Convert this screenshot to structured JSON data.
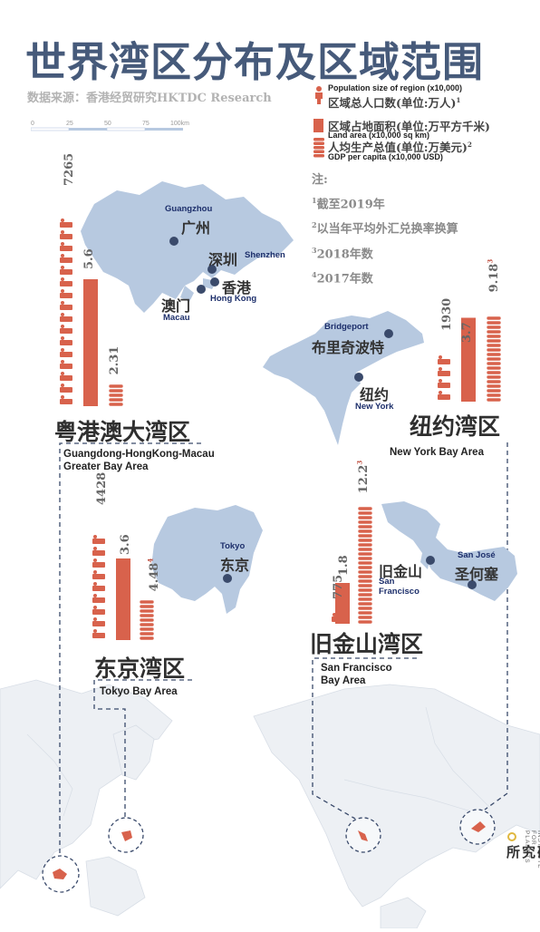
{
  "title": "世界湾区分布及区域范围",
  "source": "数据来源：香港经贸研究HKTDC Research",
  "scale": {
    "ticks": [
      "0",
      "25",
      "50",
      "75",
      "100km"
    ]
  },
  "legend": {
    "population": {
      "cn": "区域总人口数(单位:万人)",
      "sup": "1",
      "en": "Population size of region (x10,000)"
    },
    "area": {
      "cn": "区域占地面积(单位:万平方千米)",
      "en": "Land area (x10,000 sq km)"
    },
    "gdp": {
      "cn": "人均生产总值(单位:万美元)",
      "sup": "2",
      "en": "GDP per capita (x10,000 USD)"
    }
  },
  "notes": {
    "heading": "注:",
    "items": [
      {
        "sup": "1",
        "text": "截至2019年"
      },
      {
        "sup": "2",
        "text": "以当年平均外汇兑换率换算"
      },
      {
        "sup": "3",
        "text": "2018年数"
      },
      {
        "sup": "4",
        "text": "2017年数"
      }
    ]
  },
  "regions": {
    "gba": {
      "name_cn": "粤港澳大湾区",
      "name_en_1": "Guangdong-HongKong-Macau",
      "name_en_2": "Greater Bay Area",
      "population": "7265",
      "area": "5.6",
      "gdp": "2.31",
      "gdp_sup": "",
      "values": {
        "population": 7265,
        "area": 5.6,
        "gdp": 2.31
      },
      "cities": [
        {
          "cn": "广州",
          "en": "Guangzhou"
        },
        {
          "cn": "深圳",
          "en": "Shenzhen"
        },
        {
          "cn": "香港",
          "en": "Hong Kong"
        },
        {
          "cn": "澳门",
          "en": "Macau"
        }
      ]
    },
    "ny": {
      "name_cn": "纽约湾区",
      "name_en": "New York Bay Area",
      "population": "1930",
      "area": "3.7",
      "gdp": "9.18",
      "gdp_sup": "3",
      "values": {
        "population": 1930,
        "area": 3.7,
        "gdp": 9.18
      },
      "cities": [
        {
          "cn": "布里奇波特",
          "en": "Bridgeport"
        },
        {
          "cn": "纽约",
          "en": "New York"
        }
      ]
    },
    "tokyo": {
      "name_cn": "东京湾区",
      "name_en": "Tokyo Bay Area",
      "population": "4428",
      "area": "3.6",
      "gdp": "4.48",
      "gdp_sup": "4",
      "values": {
        "population": 4428,
        "area": 3.6,
        "gdp": 4.48
      },
      "cities": [
        {
          "cn": "东京",
          "en": "Tokyo"
        }
      ]
    },
    "sf": {
      "name_cn": "旧金山湾区",
      "name_en_1": "San Francisco",
      "name_en_2": "Bay Area",
      "population": "775",
      "area": "1.8",
      "gdp": "12.2",
      "gdp_sup": "3",
      "values": {
        "population": 775,
        "area": 1.8,
        "gdp": 12.2
      },
      "cities": [
        {
          "cn": "旧金山",
          "en_1": "San",
          "en_2": "Francisco"
        },
        {
          "cn": "圣何塞",
          "en": "San José"
        }
      ]
    }
  },
  "brand": {
    "cn": "星球研究所",
    "en": "INSTITUTE FOR PLANETS"
  },
  "colors": {
    "title": "#465a7a",
    "land": "#b7c9e0",
    "accent": "#d8624c",
    "city_dot": "#3a4a6b",
    "world": "#e9edf2"
  }
}
